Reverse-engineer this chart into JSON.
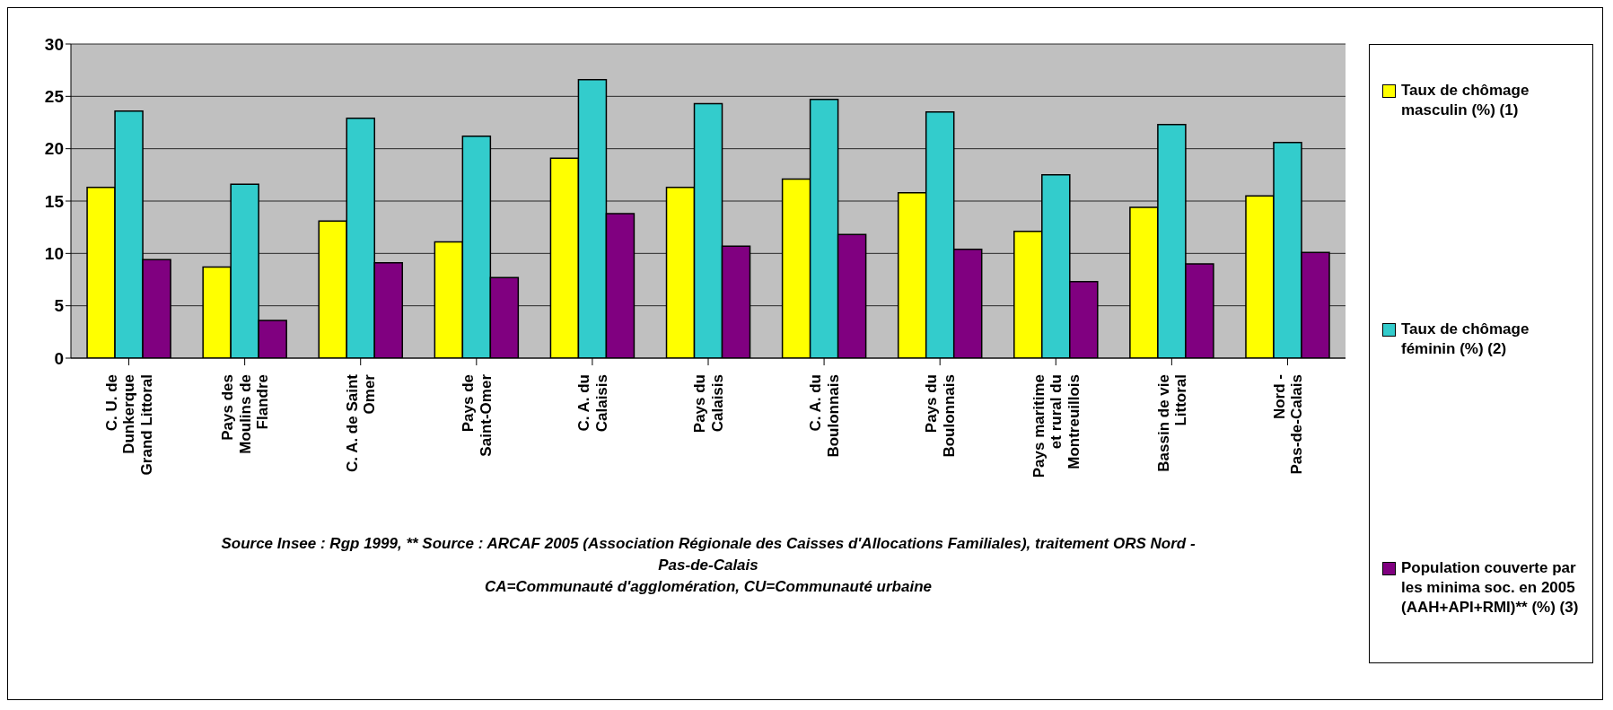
{
  "chart_data": {
    "type": "bar",
    "categories": [
      "C. U. de Dunkerque Grand Littoral",
      "Pays des Moulins de Flandre",
      "C. A. de Saint Omer",
      "Pays de Saint-Omer",
      "C. A. du Calaisis",
      "Pays du Calaisis",
      "C. A. du Boulonnais",
      "Pays du Boulonnais",
      "Pays maritime et rural du Montreuillois",
      "Bassin de vie Littoral",
      "Nord - Pas-de-Calais"
    ],
    "series": [
      {
        "name": "Taux de chômage masculin (%) (1)",
        "color": "#ffff00",
        "values": [
          16.3,
          8.7,
          13.1,
          11.1,
          19.1,
          16.3,
          17.1,
          15.8,
          12.1,
          14.4,
          15.5
        ]
      },
      {
        "name": "Taux de chômage féminin (%) (2)",
        "color": "#33cccc",
        "values": [
          23.6,
          16.6,
          22.9,
          21.2,
          26.6,
          24.3,
          24.7,
          23.5,
          17.5,
          22.3,
          20.6
        ]
      },
      {
        "name": "Population couverte par les minima soc. en 2005 (AAH+API+RMI)** (%) (3)",
        "color": "#800080",
        "values": [
          9.4,
          3.6,
          9.1,
          7.7,
          13.8,
          10.7,
          11.8,
          10.4,
          7.3,
          9.0,
          10.1
        ]
      }
    ],
    "ylim": [
      0,
      30
    ],
    "yticks": [
      0,
      5,
      10,
      15,
      20,
      25,
      30
    ],
    "grid": "y",
    "legend": "right",
    "annotations": [
      "Source Insee : Rgp 1999, ** Source : ARCAF 2005 (Association Régionale des Caisses d'Allocations Familiales), traitement ORS Nord - Pas-de-Calais",
      "CA=Communauté d'agglomération, CU=Communauté urbaine"
    ]
  }
}
